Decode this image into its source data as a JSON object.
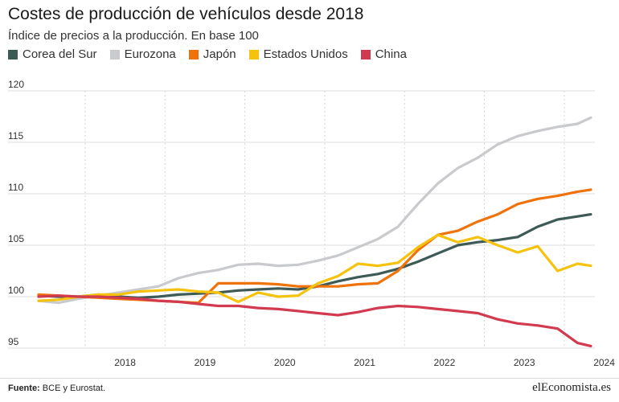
{
  "header": {
    "title": "Costes de producción de vehículos desde 2018",
    "subtitle": "Índice de precios a la producción. En base 100"
  },
  "footer": {
    "source_label": "Fuente:",
    "source_text": " BCE y Eurostat.",
    "brand": "elEconomista.es"
  },
  "chart_data": {
    "type": "line",
    "ylim": [
      95,
      120
    ],
    "yticks": [
      95,
      100,
      105,
      110,
      115,
      120
    ],
    "xticks": [
      "2018",
      "2019",
      "2020",
      "2021",
      "2022",
      "2023",
      "2024"
    ],
    "x_range": [
      "2017-06",
      "2024-05"
    ],
    "grid": true,
    "legend_position": "top-left",
    "series": [
      {
        "name": "Corea del Sur",
        "color": "#3d5a57",
        "points": [
          [
            "2017-06",
            100.1
          ],
          [
            "2017-09",
            100.0
          ],
          [
            "2017-12",
            100.0
          ],
          [
            "2018-03",
            100.2
          ],
          [
            "2018-06",
            100.0
          ],
          [
            "2018-09",
            99.9
          ],
          [
            "2018-12",
            100.0
          ],
          [
            "2019-03",
            100.2
          ],
          [
            "2019-06",
            100.3
          ],
          [
            "2019-09",
            100.4
          ],
          [
            "2019-12",
            100.6
          ],
          [
            "2020-03",
            100.7
          ],
          [
            "2020-06",
            100.8
          ],
          [
            "2020-09",
            100.7
          ],
          [
            "2020-12",
            101.0
          ],
          [
            "2021-03",
            101.5
          ],
          [
            "2021-06",
            101.9
          ],
          [
            "2021-09",
            102.2
          ],
          [
            "2021-12",
            102.7
          ],
          [
            "2022-03",
            103.4
          ],
          [
            "2022-06",
            104.2
          ],
          [
            "2022-09",
            105.0
          ],
          [
            "2022-12",
            105.3
          ],
          [
            "2023-03",
            105.5
          ],
          [
            "2023-06",
            105.8
          ],
          [
            "2023-09",
            106.8
          ],
          [
            "2023-12",
            107.5
          ],
          [
            "2024-03",
            107.8
          ],
          [
            "2024-05",
            108.0
          ]
        ]
      },
      {
        "name": "Eurozona",
        "color": "#c8cacd",
        "points": [
          [
            "2017-06",
            99.6
          ],
          [
            "2017-09",
            99.4
          ],
          [
            "2017-12",
            99.8
          ],
          [
            "2018-03",
            100.1
          ],
          [
            "2018-06",
            100.4
          ],
          [
            "2018-09",
            100.7
          ],
          [
            "2018-12",
            101.0
          ],
          [
            "2019-03",
            101.8
          ],
          [
            "2019-06",
            102.3
          ],
          [
            "2019-09",
            102.6
          ],
          [
            "2019-12",
            103.1
          ],
          [
            "2020-03",
            103.2
          ],
          [
            "2020-06",
            103.0
          ],
          [
            "2020-09",
            103.1
          ],
          [
            "2020-12",
            103.5
          ],
          [
            "2021-03",
            104.0
          ],
          [
            "2021-06",
            104.8
          ],
          [
            "2021-09",
            105.6
          ],
          [
            "2021-12",
            106.8
          ],
          [
            "2022-03",
            109.0
          ],
          [
            "2022-06",
            111.0
          ],
          [
            "2022-09",
            112.5
          ],
          [
            "2022-12",
            113.5
          ],
          [
            "2023-03",
            114.8
          ],
          [
            "2023-06",
            115.6
          ],
          [
            "2023-09",
            116.1
          ],
          [
            "2023-12",
            116.5
          ],
          [
            "2024-03",
            116.8
          ],
          [
            "2024-05",
            117.4
          ]
        ]
      },
      {
        "name": "Japón",
        "color": "#f0720a",
        "points": [
          [
            "2017-06",
            100.2
          ],
          [
            "2017-09",
            100.1
          ],
          [
            "2017-12",
            100.0
          ],
          [
            "2018-03",
            99.9
          ],
          [
            "2018-06",
            99.8
          ],
          [
            "2018-09",
            99.7
          ],
          [
            "2018-12",
            99.6
          ],
          [
            "2019-03",
            99.5
          ],
          [
            "2019-06",
            99.4
          ],
          [
            "2019-09",
            101.3
          ],
          [
            "2019-12",
            101.3
          ],
          [
            "2020-03",
            101.3
          ],
          [
            "2020-06",
            101.2
          ],
          [
            "2020-09",
            101.0
          ],
          [
            "2020-12",
            101.0
          ],
          [
            "2021-03",
            101.0
          ],
          [
            "2021-06",
            101.2
          ],
          [
            "2021-09",
            101.3
          ],
          [
            "2021-12",
            102.5
          ],
          [
            "2022-03",
            104.5
          ],
          [
            "2022-06",
            106.0
          ],
          [
            "2022-09",
            106.4
          ],
          [
            "2022-12",
            107.3
          ],
          [
            "2023-03",
            108.0
          ],
          [
            "2023-06",
            109.0
          ],
          [
            "2023-09",
            109.5
          ],
          [
            "2023-12",
            109.8
          ],
          [
            "2024-03",
            110.2
          ],
          [
            "2024-05",
            110.4
          ]
        ]
      },
      {
        "name": "Estados Unidos",
        "color": "#f5c20e",
        "points": [
          [
            "2017-06",
            99.6
          ],
          [
            "2017-09",
            99.7
          ],
          [
            "2017-12",
            100.0
          ],
          [
            "2018-03",
            100.2
          ],
          [
            "2018-06",
            100.2
          ],
          [
            "2018-09",
            100.5
          ],
          [
            "2018-12",
            100.6
          ],
          [
            "2019-03",
            100.7
          ],
          [
            "2019-06",
            100.5
          ],
          [
            "2019-09",
            100.4
          ],
          [
            "2019-12",
            99.5
          ],
          [
            "2020-03",
            100.4
          ],
          [
            "2020-06",
            100.0
          ],
          [
            "2020-09",
            100.1
          ],
          [
            "2020-12",
            101.3
          ],
          [
            "2021-03",
            102.0
          ],
          [
            "2021-06",
            103.2
          ],
          [
            "2021-09",
            103.0
          ],
          [
            "2021-12",
            103.3
          ],
          [
            "2022-03",
            104.8
          ],
          [
            "2022-06",
            106.0
          ],
          [
            "2022-09",
            105.3
          ],
          [
            "2022-12",
            105.8
          ],
          [
            "2023-03",
            105.0
          ],
          [
            "2023-06",
            104.3
          ],
          [
            "2023-09",
            104.9
          ],
          [
            "2023-12",
            102.5
          ],
          [
            "2024-03",
            103.2
          ],
          [
            "2024-05",
            103.0
          ]
        ]
      },
      {
        "name": "China",
        "color": "#d23a4f",
        "points": [
          [
            "2017-06",
            100.0
          ],
          [
            "2017-09",
            100.1
          ],
          [
            "2017-12",
            100.0
          ],
          [
            "2018-03",
            100.0
          ],
          [
            "2018-06",
            99.9
          ],
          [
            "2018-09",
            99.8
          ],
          [
            "2018-12",
            99.6
          ],
          [
            "2019-03",
            99.5
          ],
          [
            "2019-06",
            99.3
          ],
          [
            "2019-09",
            99.1
          ],
          [
            "2019-12",
            99.1
          ],
          [
            "2020-03",
            98.9
          ],
          [
            "2020-06",
            98.8
          ],
          [
            "2020-09",
            98.6
          ],
          [
            "2020-12",
            98.4
          ],
          [
            "2021-03",
            98.2
          ],
          [
            "2021-06",
            98.5
          ],
          [
            "2021-09",
            98.9
          ],
          [
            "2021-12",
            99.1
          ],
          [
            "2022-03",
            99.0
          ],
          [
            "2022-06",
            98.8
          ],
          [
            "2022-09",
            98.6
          ],
          [
            "2022-12",
            98.4
          ],
          [
            "2023-03",
            97.8
          ],
          [
            "2023-06",
            97.4
          ],
          [
            "2023-09",
            97.2
          ],
          [
            "2023-12",
            96.9
          ],
          [
            "2024-03",
            95.5
          ],
          [
            "2024-05",
            95.2
          ]
        ]
      }
    ]
  }
}
